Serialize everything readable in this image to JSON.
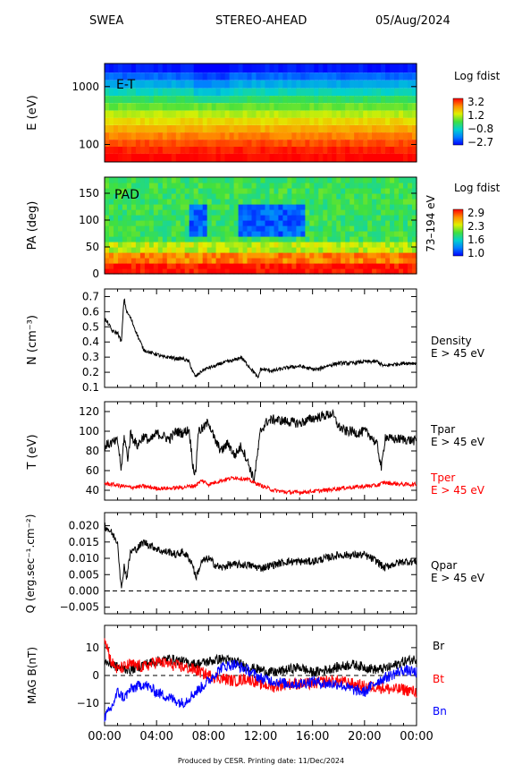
{
  "header": {
    "instrument": "SWEA",
    "spacecraft": "STEREO-AHEAD",
    "date": "05/Aug/2024"
  },
  "footer": {
    "text": "Produced by CESR.   Printing date: 11/Dec/2024"
  },
  "colors": {
    "black": "#000000",
    "red": "#ff0000",
    "blue": "#0000ff"
  },
  "chart_data": [
    {
      "id": "energy-time",
      "type": "heatmap",
      "title": "E-T",
      "ylabel": "E (eV)",
      "ylog": true,
      "ylim": [
        50,
        2500
      ],
      "yticks": [
        {
          "value": 100,
          "label": "100"
        },
        {
          "value": 1000,
          "label": "1000"
        }
      ],
      "colorbar_title": "Log fdist",
      "colorbar_ticks": [
        "3.2",
        "1.2",
        "−0.8",
        "−2.7"
      ],
      "colorbar_range": [
        -2.7,
        3.2
      ],
      "energy_levels": [
        2000,
        1500,
        1100,
        800,
        600,
        450,
        330,
        250,
        185,
        140,
        105,
        80,
        60
      ],
      "level_values": [
        -2.5,
        -1.9,
        -1.2,
        -0.6,
        0.0,
        0.5,
        1.0,
        1.5,
        1.9,
        2.3,
        2.7,
        3.0,
        3.2
      ]
    },
    {
      "id": "pitch-angle",
      "type": "heatmap",
      "title": "PAD",
      "ylabel": "PA (deg)",
      "ylim": [
        0,
        180
      ],
      "yticks": [
        {
          "value": 0,
          "label": "0"
        },
        {
          "value": 50,
          "label": "50"
        },
        {
          "value": 100,
          "label": "100"
        },
        {
          "value": 150,
          "label": "150"
        }
      ],
      "right_label": "73–194 eV",
      "colorbar_title": "Log fdist",
      "colorbar_ticks": [
        "2.9",
        "2.3",
        "1.6",
        "1.0"
      ],
      "colorbar_range": [
        1.0,
        2.9
      ]
    },
    {
      "id": "density",
      "type": "line",
      "ylabel": "N (cm⁻³)",
      "ylim": [
        0.1,
        0.75
      ],
      "yticks": [
        {
          "value": 0.1,
          "label": "0.1"
        },
        {
          "value": 0.2,
          "label": "0.2"
        },
        {
          "value": 0.3,
          "label": "0.3"
        },
        {
          "value": 0.4,
          "label": "0.4"
        },
        {
          "value": 0.5,
          "label": "0.5"
        },
        {
          "value": 0.6,
          "label": "0.6"
        },
        {
          "value": 0.7,
          "label": "0.7"
        }
      ],
      "series": [
        {
          "name": "Density",
          "sub": "E > 45 eV",
          "color": "#000000",
          "x": [
            0,
            0.3,
            0.6,
            1.0,
            1.3,
            1.5,
            1.7,
            2.0,
            2.5,
            3.0,
            3.5,
            4.0,
            4.5,
            5.0,
            5.5,
            6.0,
            6.5,
            6.8,
            7.0,
            7.5,
            8.0,
            8.5,
            9.0,
            9.5,
            10.0,
            10.5,
            11.0,
            11.5,
            11.8,
            12.0,
            13.0,
            14.0,
            15.0,
            16.0,
            16.5,
            17.0,
            17.5,
            18.0,
            19.0,
            20.0,
            21.0,
            21.5,
            22.0,
            23.0,
            24.0
          ],
          "y": [
            0.55,
            0.52,
            0.47,
            0.46,
            0.4,
            0.69,
            0.6,
            0.56,
            0.45,
            0.35,
            0.33,
            0.32,
            0.3,
            0.3,
            0.29,
            0.29,
            0.27,
            0.2,
            0.17,
            0.21,
            0.23,
            0.24,
            0.26,
            0.27,
            0.28,
            0.3,
            0.25,
            0.2,
            0.16,
            0.22,
            0.21,
            0.23,
            0.24,
            0.22,
            0.22,
            0.24,
            0.25,
            0.26,
            0.26,
            0.27,
            0.27,
            0.24,
            0.25,
            0.26,
            0.26
          ],
          "noise": 0.012
        }
      ]
    },
    {
      "id": "temperature",
      "type": "line",
      "ylabel": "T (eV)",
      "ylim": [
        30,
        130
      ],
      "yticks": [
        {
          "value": 40,
          "label": "40"
        },
        {
          "value": 60,
          "label": "60"
        },
        {
          "value": 80,
          "label": "80"
        },
        {
          "value": 100,
          "label": "100"
        },
        {
          "value": 120,
          "label": "120"
        }
      ],
      "series": [
        {
          "name": "Tpar",
          "sub": "E > 45 eV",
          "color": "#000000",
          "x": [
            0,
            0.5,
            1.0,
            1.3,
            1.5,
            1.8,
            2.0,
            2.5,
            3.0,
            3.5,
            4.0,
            4.5,
            5.0,
            5.5,
            6.0,
            6.5,
            6.8,
            7.0,
            7.2,
            7.6,
            8.0,
            8.5,
            9.0,
            9.5,
            10.0,
            10.5,
            11.0,
            11.5,
            11.8,
            12.0,
            12.5,
            13.0,
            14.0,
            15.0,
            16.0,
            17.0,
            17.5,
            18.0,
            18.5,
            19.0,
            19.5,
            20.0,
            20.5,
            21.0,
            21.3,
            21.6,
            22.0,
            23.0,
            24.0
          ],
          "y": [
            85,
            88,
            90,
            60,
            95,
            72,
            98,
            85,
            95,
            90,
            98,
            95,
            92,
            100,
            98,
            102,
            65,
            55,
            100,
            103,
            110,
            90,
            80,
            88,
            75,
            85,
            70,
            50,
            80,
            100,
            110,
            112,
            110,
            108,
            113,
            116,
            118,
            105,
            100,
            100,
            98,
            100,
            95,
            85,
            62,
            95,
            92,
            92,
            90
          ],
          "noise": 5
        },
        {
          "name": "Tper",
          "sub": "E > 45 eV",
          "color": "#ff0000",
          "x": [
            0,
            1.0,
            1.5,
            2.0,
            3.0,
            4.0,
            5.0,
            6.0,
            7.0,
            7.5,
            8.0,
            9.0,
            10.0,
            11.0,
            12.0,
            13.0,
            14.0,
            15.0,
            16.0,
            17.0,
            18.0,
            19.0,
            20.0,
            21.0,
            21.5,
            22.0,
            23.0,
            24.0
          ],
          "y": [
            47,
            45,
            44,
            43,
            44,
            42,
            42,
            43,
            45,
            50,
            46,
            50,
            53,
            51,
            45,
            40,
            38,
            38,
            39,
            40,
            42,
            43,
            44,
            45,
            48,
            47,
            46,
            46
          ],
          "noise": 2
        }
      ]
    },
    {
      "id": "heat-flux",
      "type": "line",
      "ylabel": "Q (erg.sec⁻¹.cm⁻²)",
      "ylim": [
        -0.007,
        0.024
      ],
      "yticks": [
        {
          "value": -0.005,
          "label": "−0.005"
        },
        {
          "value": 0.0,
          "label": "0.000"
        },
        {
          "value": 0.005,
          "label": "0.005"
        },
        {
          "value": 0.01,
          "label": "0.010"
        },
        {
          "value": 0.015,
          "label": "0.015"
        },
        {
          "value": 0.02,
          "label": "0.020"
        }
      ],
      "zero_line": 0,
      "series": [
        {
          "name": "Qpar",
          "sub": "E > 45 eV",
          "color": "#000000",
          "x": [
            0,
            0.5,
            1.0,
            1.3,
            1.5,
            1.7,
            2.0,
            2.5,
            3.0,
            3.5,
            4.0,
            4.5,
            5.0,
            5.5,
            6.0,
            6.5,
            6.8,
            7.0,
            7.5,
            8.0,
            8.5,
            9.0,
            9.5,
            10.0,
            11.0,
            12.0,
            13.0,
            14.0,
            15.0,
            16.0,
            17.0,
            18.0,
            19.0,
            20.0,
            20.5,
            21.0,
            21.5,
            22.0,
            23.0,
            24.0
          ],
          "y": [
            0.02,
            0.018,
            0.015,
            0.0,
            0.008,
            0.004,
            0.012,
            0.013,
            0.015,
            0.014,
            0.013,
            0.012,
            0.012,
            0.011,
            0.012,
            0.01,
            0.008,
            0.004,
            0.009,
            0.01,
            0.008,
            0.007,
            0.008,
            0.008,
            0.008,
            0.007,
            0.008,
            0.009,
            0.009,
            0.009,
            0.01,
            0.011,
            0.011,
            0.011,
            0.01,
            0.009,
            0.007,
            0.008,
            0.009,
            0.009
          ],
          "noise": 0.0012
        }
      ]
    },
    {
      "id": "magnetic-field",
      "type": "line",
      "ylabel": "MAG B(nT)",
      "ylim": [
        -18,
        18
      ],
      "yticks": [
        {
          "value": -10,
          "label": "−10"
        },
        {
          "value": 0,
          "label": "0"
        },
        {
          "value": 10,
          "label": "10"
        }
      ],
      "zero_line": 0,
      "xlim": [
        0,
        24
      ],
      "xticks": [
        "00:00",
        "04:00",
        "08:00",
        "12:00",
        "16:00",
        "20:00",
        "00:00"
      ],
      "series": [
        {
          "name": "Br",
          "color": "#000000",
          "x": [
            0,
            1,
            2,
            3,
            4,
            5,
            6,
            7,
            8,
            9,
            10,
            11,
            12,
            13,
            14,
            15,
            16,
            17,
            18,
            19,
            20,
            21,
            22,
            23,
            24
          ],
          "y": [
            5,
            3,
            2,
            4,
            5,
            6,
            5,
            4,
            5,
            6,
            5,
            3,
            2,
            1,
            2,
            3,
            1,
            2,
            3,
            4,
            3,
            2,
            3,
            5,
            6
          ],
          "noise": 1.8
        },
        {
          "name": "Bt",
          "color": "#ff0000",
          "x": [
            0,
            0.5,
            1,
            2,
            3,
            4,
            5,
            6,
            7,
            8,
            9,
            10,
            11,
            12,
            13,
            14,
            15,
            16,
            17,
            18,
            19,
            20,
            21,
            22,
            23,
            24
          ],
          "y": [
            14,
            5,
            2,
            4,
            3,
            5,
            4,
            3,
            2,
            0,
            -1,
            -2,
            -1,
            -3,
            -4,
            -3,
            -3,
            -3,
            -2,
            -2,
            -3,
            -4,
            -4,
            -5,
            -5,
            -6
          ],
          "noise": 2.2
        },
        {
          "name": "Bn",
          "color": "#0000ff",
          "x": [
            0,
            0.5,
            1,
            1.5,
            2,
            3,
            4,
            5,
            6,
            7,
            8,
            9,
            10,
            11,
            12,
            13,
            14,
            15,
            16,
            17,
            18,
            19,
            20,
            21,
            22,
            23,
            24
          ],
          "y": [
            -15,
            -12,
            -6,
            -8,
            -5,
            -3,
            -6,
            -8,
            -10,
            -6,
            -2,
            3,
            4,
            2,
            -1,
            -2,
            -3,
            -3,
            -2,
            -3,
            -3,
            -5,
            -6,
            -2,
            0,
            2,
            1
          ],
          "noise": 2.0
        }
      ]
    }
  ]
}
